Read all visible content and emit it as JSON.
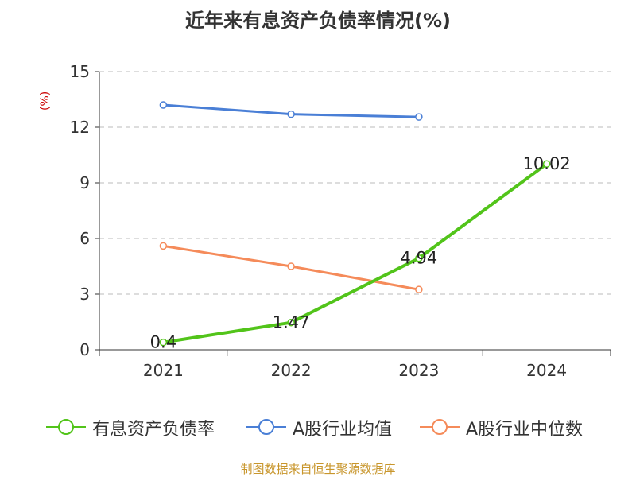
{
  "chart_data": {
    "type": "line",
    "title": "近年来有息资产负债率情况(%)",
    "ylabel": "(%)",
    "categories": [
      "2021",
      "2022",
      "2023",
      "2024"
    ],
    "ylim": [
      0,
      15
    ],
    "yticks": [
      "0",
      "3",
      "6",
      "9",
      "12",
      "15"
    ],
    "grid": "horizontal dashed",
    "legend_position": "bottom",
    "series": [
      {
        "name": "有息资产负债率",
        "color": "#52c41a",
        "values": [
          0.4,
          1.47,
          4.94,
          10.02
        ],
        "labels": [
          "0.4",
          "1.47",
          "4.94",
          "10.02"
        ]
      },
      {
        "name": "A股行业均值",
        "color": "#4a7fd6",
        "values": [
          13.2,
          12.7,
          12.55,
          null
        ]
      },
      {
        "name": "A股行业中位数",
        "color": "#f58b5a",
        "values": [
          5.6,
          4.5,
          3.25,
          null
        ]
      }
    ]
  },
  "source": "制图数据来自恒生聚源数据库"
}
